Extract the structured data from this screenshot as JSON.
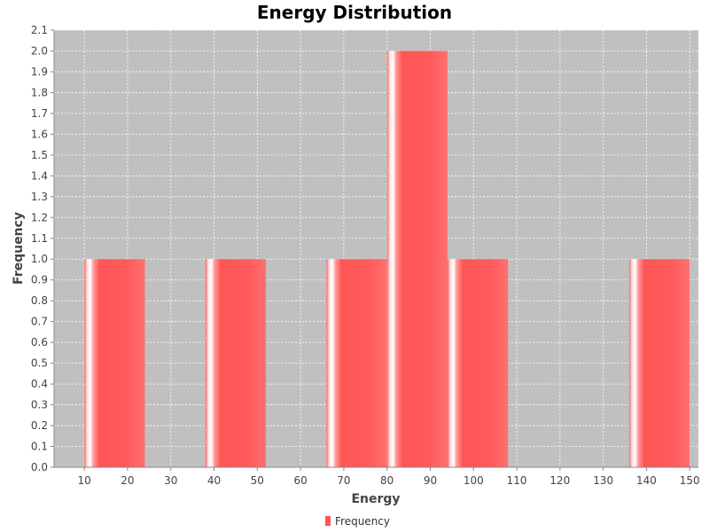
{
  "chart_data": {
    "type": "bar",
    "title": "Energy Distribution",
    "xlabel": "Energy",
    "ylabel": "Frequency",
    "xlim": [
      3,
      152
    ],
    "ylim": [
      0,
      2.1
    ],
    "x_ticks": [
      10,
      20,
      30,
      40,
      50,
      60,
      70,
      80,
      90,
      100,
      110,
      120,
      130,
      140,
      150
    ],
    "y_ticks": [
      "0.0",
      "0.1",
      "0.2",
      "0.3",
      "0.4",
      "0.5",
      "0.6",
      "0.7",
      "0.8",
      "0.9",
      "1.0",
      "1.1",
      "1.2",
      "1.3",
      "1.4",
      "1.5",
      "1.6",
      "1.7",
      "1.8",
      "1.9",
      "2.0",
      "2.1"
    ],
    "grid": true,
    "legend_position": "bottom-center",
    "series": [
      {
        "name": "Frequency",
        "color": "#ff5555",
        "bins": [
          {
            "start": 10,
            "end": 24,
            "value": 1
          },
          {
            "start": 38,
            "end": 52,
            "value": 1
          },
          {
            "start": 66,
            "end": 80,
            "value": 1
          },
          {
            "start": 80,
            "end": 94,
            "value": 2
          },
          {
            "start": 94,
            "end": 108,
            "value": 1
          },
          {
            "start": 136,
            "end": 150,
            "value": 1
          }
        ]
      }
    ]
  }
}
